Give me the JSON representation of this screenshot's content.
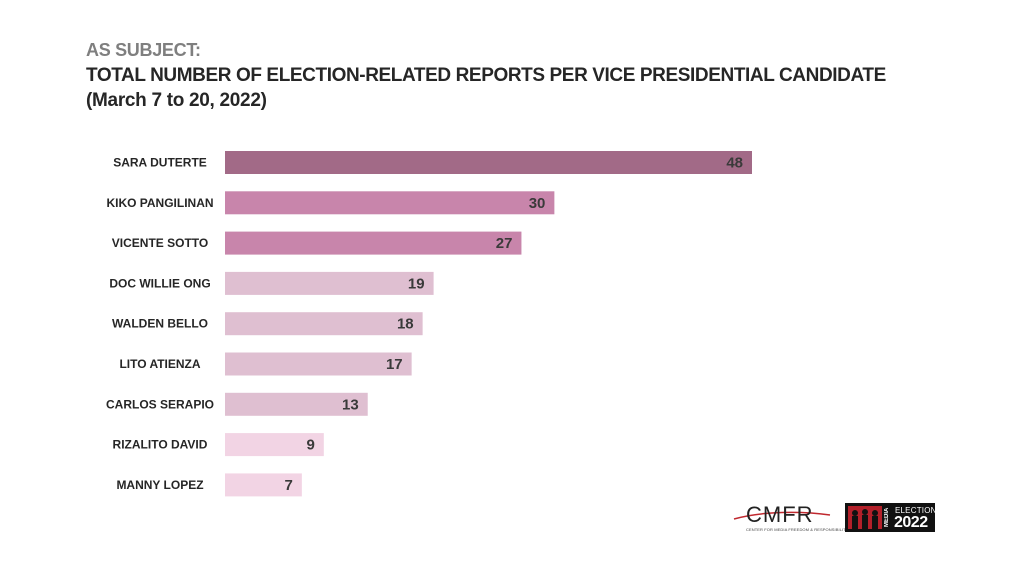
{
  "header": {
    "subject": "AS SUBJECT:",
    "title": "TOTAL NUMBER OF  ELECTION-RELATED REPORTS PER VICE PRESIDENTIAL CANDIDATE",
    "subtitle": "(March 7 to 20, 2022)"
  },
  "chart_data": {
    "type": "bar",
    "orientation": "horizontal",
    "title": "TOTAL NUMBER OF  ELECTION-RELATED REPORTS PER VICE PRESIDENTIAL CANDIDATE",
    "subtitle": "(March 7 to 20, 2022)",
    "categories": [
      "SARA DUTERTE",
      "KIKO PANGILINAN",
      "VICENTE SOTTO",
      "DOC WILLIE ONG",
      "WALDEN BELLO",
      "LITO ATIENZA",
      "CARLOS SERAPIO",
      "RIZALITO DAVID",
      "MANNY LOPEZ"
    ],
    "values": [
      48,
      30,
      27,
      19,
      18,
      17,
      13,
      9,
      7
    ],
    "bar_colors": [
      "#a26a87",
      "#c885ab",
      "#c885ab",
      "#dfbfd1",
      "#dfbfd1",
      "#dfbfd1",
      "#dfbfd1",
      "#f2d4e4",
      "#f2d4e4"
    ],
    "xlim": [
      0,
      48
    ],
    "grid": false,
    "legend": "none",
    "data_labels": true
  },
  "logos": {
    "cmfr_text": "CMFR",
    "cmfr_sub": "CENTER FOR MEDIA FREEDOM & RESPONSIBILITY",
    "media_text": "MEDIA",
    "elections_text": "ELECTIONS",
    "year_text": "2022"
  },
  "colors": {
    "cmfr_red": "#c0282e",
    "me_red": "#b3202a"
  }
}
